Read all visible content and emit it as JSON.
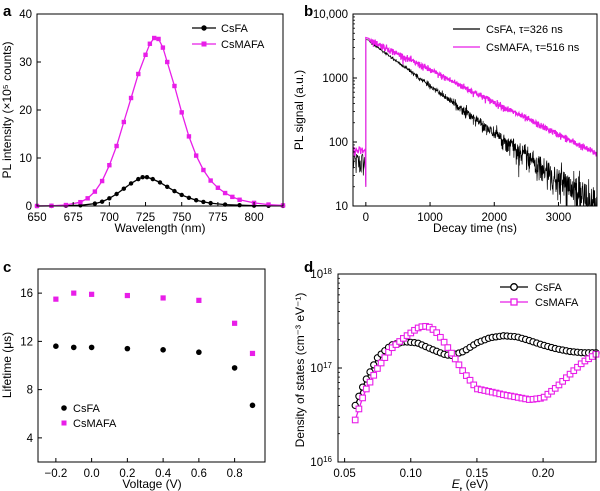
{
  "figure": {
    "letters": [
      "a",
      "b",
      "c",
      "d"
    ]
  },
  "colors": {
    "csfa": "#000000",
    "csmafa": "#e81ee8"
  },
  "chart_data": [
    {
      "panel": "a",
      "type": "line",
      "xlabel": "Wavelength (nm)",
      "ylabel": "PL intensity (×10⁵ counts)",
      "xlim": [
        650,
        820
      ],
      "ylim": [
        0,
        40
      ],
      "xticks": [
        650,
        675,
        700,
        725,
        750,
        775,
        800
      ],
      "yticks": [
        0,
        10,
        20,
        30,
        40
      ],
      "legend_position": "top-right",
      "series": [
        {
          "name": "CsFA",
          "marker": "circle",
          "color": "#000000",
          "x": [
            650,
            660,
            670,
            680,
            690,
            695,
            700,
            705,
            710,
            715,
            720,
            723,
            726,
            730,
            735,
            740,
            745,
            750,
            755,
            760,
            765,
            770,
            780,
            790,
            800,
            810,
            820
          ],
          "y": [
            0.0,
            0.02,
            0.06,
            0.15,
            0.5,
            0.9,
            1.6,
            2.5,
            3.6,
            4.7,
            5.6,
            6.0,
            6.0,
            5.6,
            4.9,
            4.0,
            3.1,
            2.3,
            1.7,
            1.2,
            0.85,
            0.6,
            0.3,
            0.16,
            0.08,
            0.04,
            0.02
          ]
        },
        {
          "name": "CsMAFA",
          "marker": "square",
          "color": "#e81ee8",
          "x": [
            650,
            660,
            670,
            680,
            685,
            690,
            695,
            700,
            705,
            710,
            715,
            720,
            725,
            728,
            731,
            734,
            737,
            740,
            745,
            750,
            755,
            760,
            765,
            770,
            775,
            780,
            785,
            790,
            800,
            810,
            820
          ],
          "y": [
            0.0,
            0.05,
            0.2,
            0.8,
            1.6,
            3.0,
            5.2,
            8.5,
            12.5,
            17.5,
            22.5,
            27.5,
            31.5,
            33.8,
            35.0,
            34.8,
            33.0,
            30.0,
            25.0,
            19.5,
            14.5,
            10.5,
            7.5,
            5.3,
            3.8,
            2.7,
            1.9,
            1.3,
            0.65,
            0.3,
            0.12
          ]
        }
      ]
    },
    {
      "panel": "b",
      "type": "line",
      "xlabel": "Decay time (ns)",
      "ylabel": "PL signal (a.u.)",
      "xlim": [
        -200,
        3600
      ],
      "ylim": [
        10,
        10000
      ],
      "yscale": "log",
      "xticks": [
        0,
        1000,
        2000,
        3000
      ],
      "yticks": [
        10,
        100,
        1000,
        10000
      ],
      "ytick_labels": [
        "10",
        "100",
        "1000",
        "10,000"
      ],
      "legend_position": "top-right",
      "series": [
        {
          "name": "CsFA, τ=326 ns",
          "color": "#000000",
          "x": [
            0,
            50,
            3600
          ],
          "y": [
            4000,
            3800,
            9
          ],
          "noise": "high"
        },
        {
          "name": "CsMAFA, τ=516 ns",
          "color": "#e81ee8",
          "x": [
            0,
            50,
            3600
          ],
          "y": [
            4300,
            4000,
            65
          ],
          "noise": "low"
        }
      ]
    },
    {
      "panel": "c",
      "type": "scatter",
      "xlabel": "Voltage (V)",
      "ylabel": "Lifetime (μs)",
      "xlim": [
        -0.3,
        0.97
      ],
      "ylim": [
        2,
        18
      ],
      "xticks": [
        -0.2,
        0.0,
        0.2,
        0.4,
        0.6,
        0.8
      ],
      "xtick_labels": [
        "−0.2",
        "0.0",
        "0.2",
        "0.4",
        "0.6",
        "0.8"
      ],
      "yticks": [
        4,
        8,
        12,
        16
      ],
      "legend_position": "bottom-left",
      "series": [
        {
          "name": "CsFA",
          "marker": "circle",
          "color": "#000000",
          "x": [
            -0.2,
            -0.1,
            0.0,
            0.2,
            0.4,
            0.6,
            0.8,
            0.9
          ],
          "y": [
            11.6,
            11.5,
            11.5,
            11.4,
            11.3,
            11.1,
            9.8,
            6.7
          ]
        },
        {
          "name": "CsMAFA",
          "marker": "square",
          "color": "#e81ee8",
          "x": [
            -0.2,
            -0.1,
            0.0,
            0.2,
            0.4,
            0.6,
            0.8,
            0.9
          ],
          "y": [
            15.5,
            16.0,
            15.9,
            15.8,
            15.6,
            15.4,
            13.5,
            11.0
          ]
        }
      ]
    },
    {
      "panel": "d",
      "type": "line",
      "xlabel_main": "E",
      "xlabel_sub": "t",
      "xlabel_rest": " (eV)",
      "ylabel": "Density of states (cm⁻³ eV⁻¹)",
      "xlim": [
        0.045,
        0.24
      ],
      "ylim": [
        1e+16,
        1e+18
      ],
      "yscale": "log",
      "xticks": [
        0.05,
        0.1,
        0.15,
        0.2
      ],
      "xtick_labels": [
        "0.05",
        "0.10",
        "0.15",
        "0.20"
      ],
      "yticks": [
        1e+16,
        1e+17,
        1e+18
      ],
      "ytick_mantissa": [
        "10",
        "10",
        "10"
      ],
      "ytick_exponent": [
        "16",
        "17",
        "18"
      ],
      "legend_position": "top-right",
      "series": [
        {
          "name": "CsFA",
          "marker": "circle-open",
          "color": "#000000",
          "x": [
            0.058,
            0.065,
            0.075,
            0.085,
            0.095,
            0.105,
            0.115,
            0.125,
            0.13,
            0.14,
            0.15,
            0.16,
            0.17,
            0.18,
            0.19,
            0.2,
            0.21,
            0.22,
            0.23,
            0.24
          ],
          "y": [
            4e+16,
            7e+16,
            1.3e+17,
            1.75e+17,
            1.9e+17,
            1.85e+17,
            1.6e+17,
            1.4e+17,
            1.35e+17,
            1.5e+17,
            1.85e+17,
            2.1e+17,
            2.2e+17,
            2.15e+17,
            1.95e+17,
            1.75e+17,
            1.6e+17,
            1.5e+17,
            1.45e+17,
            1.45e+17
          ]
        },
        {
          "name": "CsMAFA",
          "marker": "square-open",
          "color": "#e81ee8",
          "x": [
            0.058,
            0.065,
            0.075,
            0.085,
            0.095,
            0.105,
            0.11,
            0.115,
            0.12,
            0.125,
            0.13,
            0.14,
            0.15,
            0.16,
            0.17,
            0.18,
            0.19,
            0.2,
            0.21,
            0.22,
            0.23,
            0.24
          ],
          "y": [
            2.8e+16,
            5.5e+16,
            1e+17,
            1.6e+17,
            2.1e+17,
            2.65e+17,
            2.8e+17,
            2.7e+17,
            2.35e+17,
            1.9e+17,
            1.5e+17,
            9e+16,
            6e+16,
            5.6e+16,
            5.2e+16,
            4.9e+16,
            4.6e+16,
            4.8e+16,
            6.2e+16,
            8.5e+16,
            1.15e+17,
            1.4e+17
          ]
        }
      ]
    }
  ]
}
